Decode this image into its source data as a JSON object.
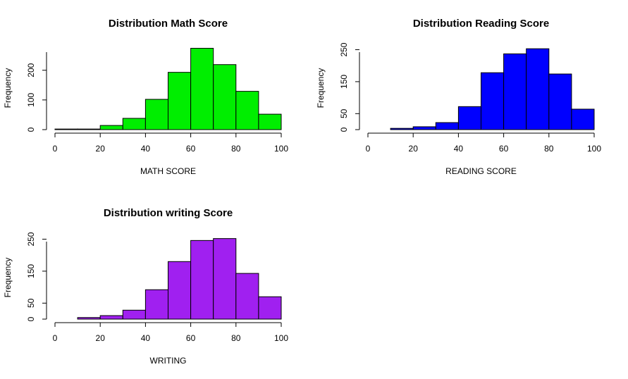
{
  "chart_data": [
    {
      "type": "histogram",
      "title": "Distribution Math Score",
      "xlabel": "MATH SCORE",
      "ylabel": "Frequency",
      "bins": [
        0,
        10,
        20,
        30,
        40,
        50,
        60,
        70,
        80,
        90,
        100
      ],
      "values": [
        2,
        2,
        14,
        38,
        102,
        193,
        274,
        219,
        129,
        52
      ],
      "color": "#00ee00",
      "xlim": [
        0,
        100
      ],
      "xticks": [
        0,
        20,
        40,
        60,
        80,
        100
      ],
      "ylim": [
        0,
        280
      ],
      "yticks": [
        0,
        100,
        200
      ]
    },
    {
      "type": "histogram",
      "title": "Distribution Reading Score",
      "xlabel": "READING SCORE",
      "ylabel": "Frequency",
      "bins": [
        10,
        20,
        30,
        40,
        50,
        60,
        70,
        80,
        90,
        100
      ],
      "values": [
        4,
        9,
        22,
        72,
        178,
        237,
        253,
        174,
        64
      ],
      "color": "#0000ff",
      "xlim": [
        0,
        100
      ],
      "xticks": [
        0,
        20,
        40,
        60,
        80,
        100
      ],
      "ylim": [
        0,
        260
      ],
      "yticks": [
        0,
        50,
        150,
        250
      ]
    },
    {
      "type": "histogram",
      "title": "Distribution writing Score",
      "xlabel": "WRITING",
      "ylabel": "Frequency",
      "bins": [
        10,
        20,
        30,
        40,
        50,
        60,
        70,
        80,
        90,
        100
      ],
      "values": [
        5,
        11,
        28,
        92,
        180,
        246,
        252,
        143,
        70
      ],
      "color": "#a020f0",
      "xlim": [
        0,
        100
      ],
      "xticks": [
        0,
        20,
        40,
        60,
        80,
        100
      ],
      "ylim": [
        0,
        260
      ],
      "yticks": [
        0,
        50,
        150,
        250
      ]
    }
  ]
}
